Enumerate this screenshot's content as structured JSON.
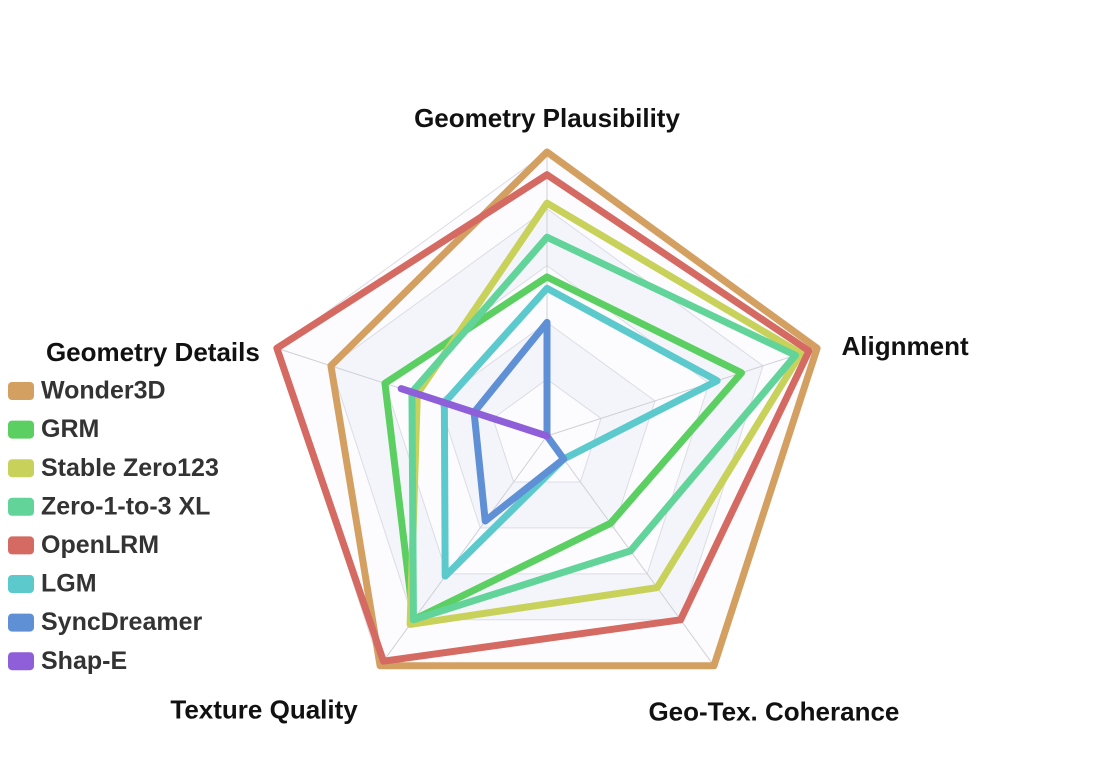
{
  "chart_data": {
    "type": "radar",
    "title": "",
    "axes": [
      "Geometry Plausibility",
      "Alignment",
      "Geo-Tex. Coherance",
      "Texture Quality",
      "Geometry Details"
    ],
    "range": [
      0,
      1
    ],
    "rings": 5,
    "grid": true,
    "legend_position": "left",
    "series": [
      {
        "name": "Wonder3D",
        "color": "#d4a062",
        "values": [
          1.0,
          1.0,
          1.0,
          1.0,
          0.8
        ]
      },
      {
        "name": "GRM",
        "color": "#5ccf62",
        "values": [
          0.56,
          0.72,
          0.38,
          0.8,
          0.6
        ]
      },
      {
        "name": "Stable Zero123",
        "color": "#c8d25a",
        "values": [
          0.82,
          0.94,
          0.66,
          0.82,
          0.48
        ]
      },
      {
        "name": "Zero-1-to-3 XL",
        "color": "#62d49a",
        "values": [
          0.7,
          0.92,
          0.5,
          0.8,
          0.5
        ]
      },
      {
        "name": "OpenLRM",
        "color": "#d46a62",
        "values": [
          0.92,
          0.97,
          0.8,
          0.98,
          1.0
        ]
      },
      {
        "name": "LGM",
        "color": "#5ccacc",
        "values": [
          0.52,
          0.63,
          0.1,
          0.61,
          0.38
        ]
      },
      {
        "name": "SyncDreamer",
        "color": "#5f90d6",
        "values": [
          0.4,
          0.0,
          0.1,
          0.37,
          0.27
        ]
      },
      {
        "name": "Shap-E",
        "color": "#8e5fd8",
        "values": [
          0.0,
          0.0,
          0.0,
          0.0,
          0.54
        ]
      }
    ]
  }
}
